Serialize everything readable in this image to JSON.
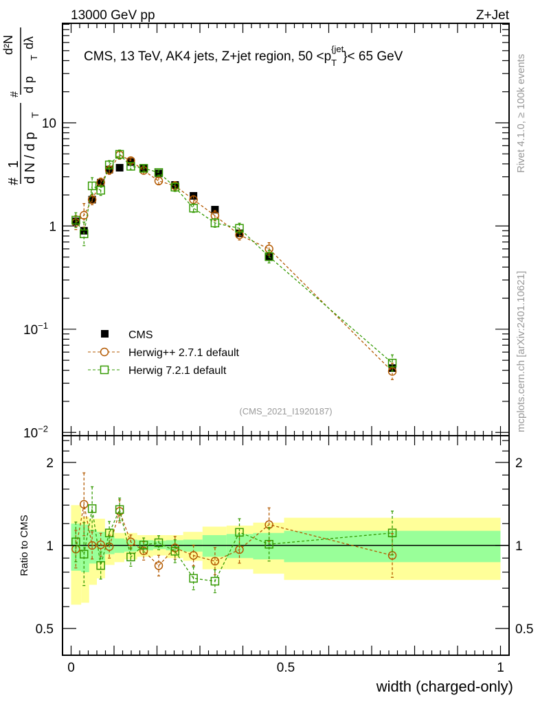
{
  "header": {
    "left": "13000 GeV pp",
    "right": "Z+Jet"
  },
  "side": {
    "rivet": "Rivet 4.1.0, ≥ 100k events",
    "mcplots": "mcplots.cern.ch [arXiv:2401.10621]"
  },
  "colors": {
    "cms": "#000000",
    "herwigpp": "#b35900",
    "herwig7": "#339900",
    "stat_band": "#99ff99",
    "total_band": "#ffff99"
  },
  "chart_data": [
    {
      "type": "scatter",
      "title": "CMS, 13 TeV, AK4 jets, Z+jet region, 50 <p_T^{jet}< 65 GeV",
      "title_parts": {
        "main": "CMS, 13 TeV, AK4 jets, Z+jet region, 50 <p",
        "sup": "{jet",
        "sub": "T",
        "tail": "}< 65 GeV"
      },
      "ylabel": {
        "num1": "1",
        "den1": "d N / d p",
        "sub": "T",
        "num2": "d²N",
        "den2": "d p",
        "den2b": "dλ"
      },
      "yscale": "log",
      "ylim": [
        0.0093,
        92
      ],
      "xlim": [
        -0.02,
        1.02
      ],
      "yticks": [
        {
          "v": 10,
          "label": "10"
        },
        {
          "v": 1,
          "label": "1"
        },
        {
          "v": 0.1,
          "label": "10",
          "exp": "−1"
        },
        {
          "v": 0.01,
          "label": "10",
          "exp": "−2"
        }
      ],
      "watermark": "(CMS_2021_I1920187)",
      "legend": {
        "placement": "lower-left",
        "entries": [
          "CMS",
          "Herwig++ 2.7.1 default",
          "Herwig 7.2.1 default"
        ]
      },
      "bin_edges": [
        0,
        0.0235,
        0.042,
        0.06,
        0.079,
        0.101,
        0.124,
        0.154,
        0.191,
        0.221,
        0.261,
        0.306,
        0.362,
        0.424,
        0.496,
        1.0
      ],
      "x": [
        0.011,
        0.03,
        0.049,
        0.069,
        0.089,
        0.113,
        0.139,
        0.169,
        0.204,
        0.242,
        0.285,
        0.335,
        0.392,
        0.461,
        0.748
      ],
      "series": [
        {
          "name": "CMS",
          "values": [
            1.11,
            0.9,
            1.8,
            2.63,
            3.52,
            3.67,
            4.17,
            3.61,
            3.23,
            2.5,
            1.96,
            1.44,
            0.85,
            0.5,
            0.042
          ]
        },
        {
          "name": "Herwig++ 2.7.1 default",
          "values": [
            1.08,
            1.27,
            1.8,
            2.65,
            3.48,
            4.88,
            4.3,
            3.45,
            2.73,
            2.45,
            1.8,
            1.26,
            0.82,
            0.6,
            0.039
          ],
          "rel_err": [
            0.17,
            0.3,
            0.12,
            0.1,
            0.1,
            0.1,
            0.06,
            0.08,
            0.09,
            0.1,
            0.09,
            0.12,
            0.12,
            0.15,
            0.2
          ]
        },
        {
          "name": "Herwig 7.2.1 default",
          "values": [
            1.14,
            0.84,
            2.45,
            2.22,
            3.91,
            4.95,
            3.79,
            3.62,
            3.3,
            2.38,
            1.49,
            1.07,
            0.95,
            0.505,
            0.047
          ],
          "rel_err": [
            0.18,
            0.3,
            0.2,
            0.12,
            0.1,
            0.1,
            0.08,
            0.06,
            0.06,
            0.1,
            0.1,
            0.1,
            0.12,
            0.15,
            0.2
          ]
        }
      ]
    },
    {
      "type": "scatter",
      "ylabel": "Ratio to CMS",
      "xlabel": "width (charged-only)",
      "yscale": "log",
      "ylim": [
        0.4,
        2.5
      ],
      "yticks": [
        {
          "v": 2,
          "label": "2"
        },
        {
          "v": 1,
          "label": "1"
        },
        {
          "v": 0.5,
          "label": "0.5"
        }
      ],
      "xticks": [
        {
          "v": 0,
          "label": "0"
        },
        {
          "v": 0.5,
          "label": "0.5"
        },
        {
          "v": 1,
          "label": "1"
        }
      ],
      "stat_band": {
        "up": [
          1.2,
          1.19,
          1.14,
          1.12,
          1.08,
          1.06,
          1.05,
          1.045,
          1.04,
          1.045,
          1.05,
          1.09,
          1.1,
          1.11,
          1.13
        ],
        "down": [
          0.81,
          0.8,
          0.86,
          0.87,
          0.93,
          0.94,
          0.95,
          0.96,
          0.97,
          0.96,
          0.95,
          0.91,
          0.9,
          0.89,
          0.87
        ]
      },
      "total_band": {
        "up": [
          1.4,
          1.27,
          1.25,
          1.25,
          1.15,
          1.11,
          1.11,
          1.09,
          1.09,
          1.09,
          1.12,
          1.17,
          1.18,
          1.21,
          1.26
        ],
        "down": [
          0.61,
          0.62,
          0.72,
          0.76,
          0.85,
          0.87,
          0.89,
          0.91,
          0.92,
          0.9,
          0.88,
          0.82,
          0.82,
          0.79,
          0.75
        ]
      },
      "series": [
        {
          "name": "Herwig++ 2.7.1 default",
          "values": [
            0.97,
            1.41,
            1.0,
            1.006,
            0.99,
            1.33,
            1.03,
            0.956,
            0.845,
            0.98,
            0.92,
            0.877,
            0.966,
            1.19,
            0.92
          ]
        },
        {
          "name": "Herwig 7.2.1 default",
          "values": [
            1.03,
            0.93,
            1.36,
            0.846,
            1.11,
            1.35,
            0.908,
            1.004,
            1.023,
            0.953,
            0.76,
            0.742,
            1.116,
            1.01,
            1.11
          ]
        }
      ]
    }
  ]
}
